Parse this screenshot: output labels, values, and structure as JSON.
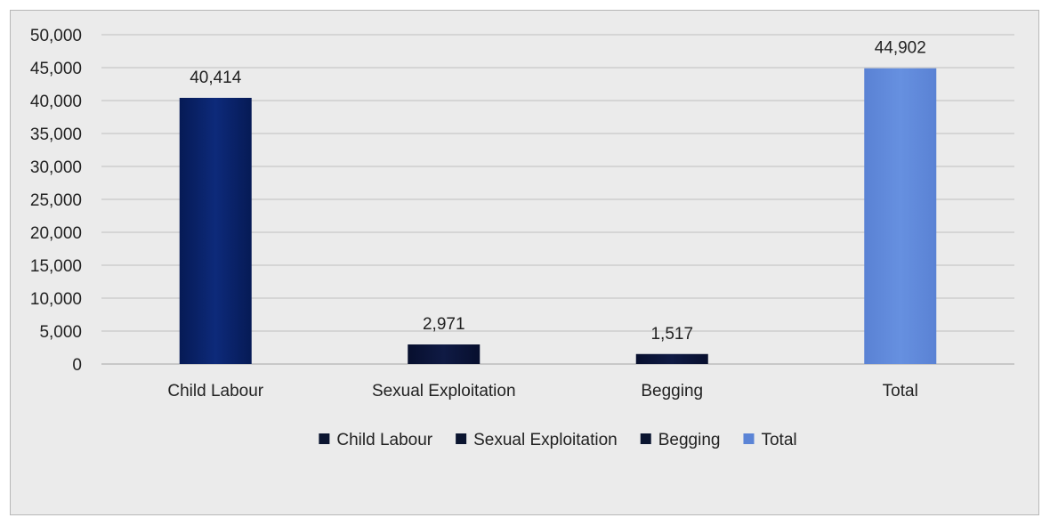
{
  "chart_data": {
    "type": "bar",
    "categories": [
      "Child Labour",
      "Sexual Exploitation",
      "Begging",
      "Total"
    ],
    "values": [
      40414,
      2971,
      1517,
      44902
    ],
    "data_labels": [
      "40,414",
      "2,971",
      "1,517",
      "44,902"
    ],
    "colors": [
      "#0a2366",
      "#0a1438",
      "#0a1438",
      "#5b84d6"
    ],
    "legend": [
      "Child Labour",
      "Sexual Exploitation",
      "Begging",
      "Total"
    ],
    "legend_colors": [
      "#0b1530",
      "#0b1530",
      "#0b1530",
      "#5b84d6"
    ],
    "legend_position": "bottom",
    "ylim": [
      0,
      50000
    ],
    "yticks": [
      0,
      5000,
      10000,
      15000,
      20000,
      25000,
      30000,
      35000,
      40000,
      45000,
      50000
    ],
    "ytick_labels": [
      "0",
      "5,000",
      "10,000",
      "15,000",
      "20,000",
      "25,000",
      "30,000",
      "35,000",
      "40,000",
      "45,000",
      "50,000"
    ],
    "grid": true
  }
}
